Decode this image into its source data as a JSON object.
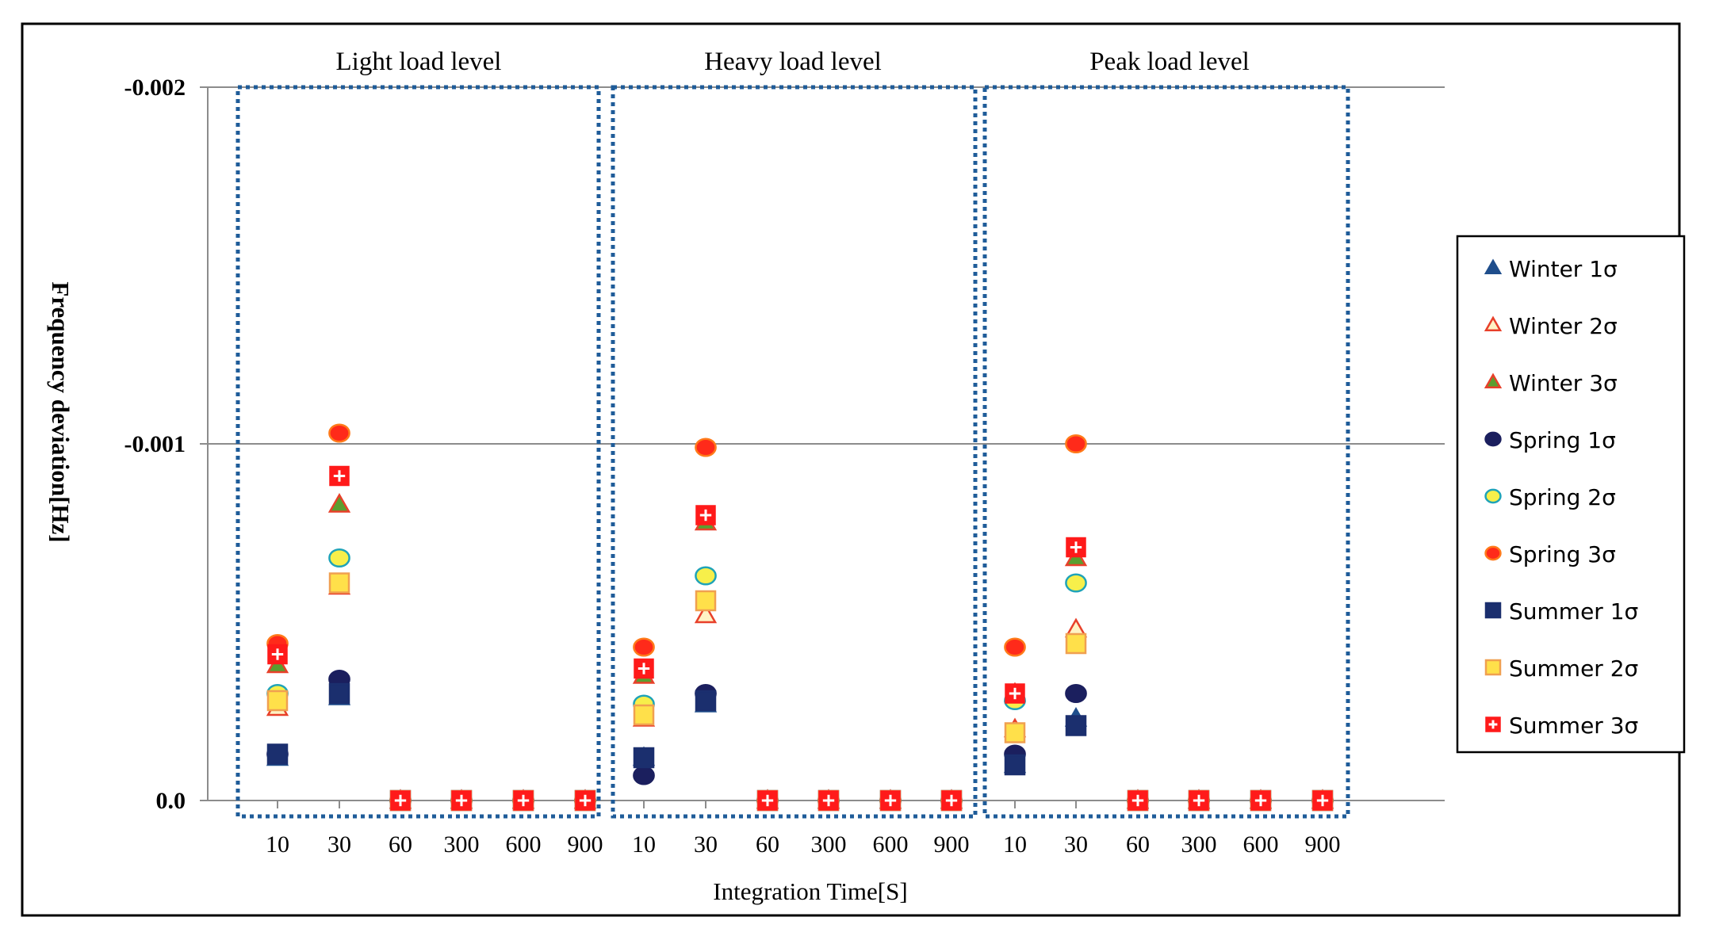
{
  "chart_data": {
    "type": "scatter",
    "ylabel": "Frequency deviation[Hz]",
    "xlabel": "Integration Time[S]",
    "y_axis_reversed": true,
    "ylim": [
      0.0,
      -0.002
    ],
    "yticks": [
      {
        "value": -0.002,
        "label": "-0.002"
      },
      {
        "value": -0.001,
        "label": "-0.001"
      },
      {
        "value": 0.0,
        "label": "0.0"
      }
    ],
    "categories": [
      "10",
      "30",
      "60",
      "300",
      "600",
      "900"
    ],
    "panels": [
      {
        "title": "Light load level"
      },
      {
        "title": "Heavy load level"
      },
      {
        "title": "Peak load level"
      }
    ],
    "series": [
      {
        "name": "Winter 1σ",
        "marker": "triangle",
        "fill": "#1f4e8c",
        "stroke": "#1f4e8c",
        "values": [
          [
            -0.00012,
            -0.00029,
            0,
            0,
            0,
            0
          ],
          [
            -0.00012,
            -0.00027,
            0,
            0,
            0,
            0
          ],
          [
            -0.0001,
            -0.00023,
            0,
            0,
            0,
            0
          ]
        ]
      },
      {
        "name": "Winter 2σ",
        "marker": "triangle",
        "fill": "#fff3c4",
        "stroke": "#e8402a",
        "values": [
          [
            -0.00026,
            -0.0006,
            0,
            0,
            0,
            0
          ],
          [
            -0.00023,
            -0.00052,
            0,
            0,
            0,
            0
          ],
          [
            -0.0002,
            -0.00048,
            0,
            0,
            0,
            0
          ]
        ]
      },
      {
        "name": "Winter 3σ",
        "marker": "triangle",
        "fill": "#5a9e2f",
        "stroke": "#e8402a",
        "values": [
          [
            -0.00038,
            -0.00083,
            0,
            0,
            0,
            0
          ],
          [
            -0.00035,
            -0.00078,
            0,
            0,
            0,
            0
          ],
          [
            -0.0003,
            -0.00068,
            0,
            0,
            0,
            0
          ]
        ]
      },
      {
        "name": "Spring 1σ",
        "marker": "circle",
        "fill": "#1b1f5e",
        "stroke": "#1b1f5e",
        "values": [
          [
            -0.00013,
            -0.00034,
            0,
            0,
            0,
            0
          ],
          [
            -7e-05,
            -0.0003,
            0,
            0,
            0,
            0
          ],
          [
            -0.00013,
            -0.0003,
            0,
            0,
            0,
            0
          ]
        ]
      },
      {
        "name": "Spring 2σ",
        "marker": "circle",
        "fill": "#f7ef4a",
        "stroke": "#1fa3b8",
        "values": [
          [
            -0.0003,
            -0.00068,
            0,
            0,
            0,
            0
          ],
          [
            -0.00027,
            -0.00063,
            0,
            0,
            0,
            0
          ],
          [
            -0.00028,
            -0.00061,
            0,
            0,
            0,
            0
          ]
        ]
      },
      {
        "name": "Spring 3σ",
        "marker": "circle",
        "fill": "#ff2a1a",
        "stroke": "#ff7a1a",
        "values": [
          [
            -0.00044,
            -0.00103,
            0,
            0,
            0,
            0
          ],
          [
            -0.00043,
            -0.00099,
            0,
            0,
            0,
            0
          ],
          [
            -0.00043,
            -0.001,
            0,
            0,
            0,
            0
          ]
        ]
      },
      {
        "name": "Summer 1σ",
        "marker": "square",
        "fill": "#1b2f6e",
        "stroke": "#1b2f6e",
        "values": [
          [
            -0.00013,
            -0.0003,
            0,
            0,
            0,
            0
          ],
          [
            -0.00012,
            -0.00028,
            0,
            0,
            0,
            0
          ],
          [
            -0.0001,
            -0.00021,
            0,
            0,
            0,
            0
          ]
        ]
      },
      {
        "name": "Summer 2σ",
        "marker": "square",
        "fill": "#ffe04a",
        "stroke": "#f0a050",
        "values": [
          [
            -0.00028,
            -0.00061,
            0,
            0,
            0,
            0
          ],
          [
            -0.00024,
            -0.00056,
            0,
            0,
            0,
            0
          ],
          [
            -0.00019,
            -0.00044,
            0,
            0,
            0,
            0
          ]
        ]
      },
      {
        "name": "Summer 3σ",
        "marker": "cross-square",
        "fill": "#ff1a1a",
        "stroke": "#ff1a1a",
        "values": [
          [
            -0.00041,
            -0.00091,
            0,
            0,
            0,
            0
          ],
          [
            -0.00037,
            -0.0008,
            0,
            0,
            0,
            0
          ],
          [
            -0.0003,
            -0.00071,
            0,
            0,
            0,
            0
          ]
        ]
      }
    ],
    "legend_position": "right"
  }
}
